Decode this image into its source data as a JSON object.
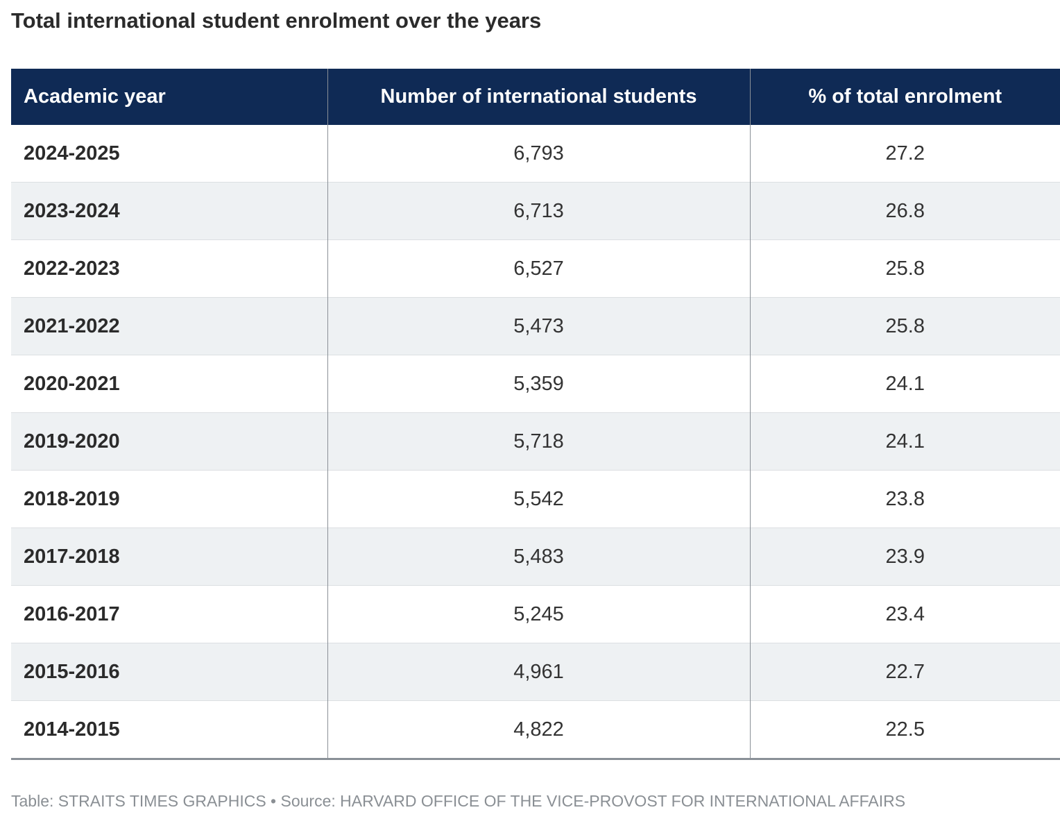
{
  "title": "Total international student enrolment over the years",
  "chart_data": {
    "type": "table",
    "columns": [
      "Academic year",
      "Number of international students",
      "% of total enrolment"
    ],
    "rows": [
      [
        "2024-2025",
        "6,793",
        "27.2"
      ],
      [
        "2023-2024",
        "6,713",
        "26.8"
      ],
      [
        "2022-2023",
        "6,527",
        "25.8"
      ],
      [
        "2021-2022",
        "5,473",
        "25.8"
      ],
      [
        "2020-2021",
        "5,359",
        "24.1"
      ],
      [
        "2019-2020",
        "5,718",
        "24.1"
      ],
      [
        "2018-2019",
        "5,542",
        "23.8"
      ],
      [
        "2017-2018",
        "5,483",
        "23.9"
      ],
      [
        "2016-2017",
        "5,245",
        "23.4"
      ],
      [
        "2015-2016",
        "4,961",
        "22.7"
      ],
      [
        "2014-2015",
        "4,822",
        "22.5"
      ]
    ]
  },
  "footer": "Table: STRAITS TIMES GRAPHICS • Source: HARVARD OFFICE OF THE VICE-PROVOST FOR INTERNATIONAL AFFAIRS",
  "colors": {
    "header_bg": "#0f2a55",
    "header_text": "#ffffff",
    "stripe": "#eef1f3"
  }
}
